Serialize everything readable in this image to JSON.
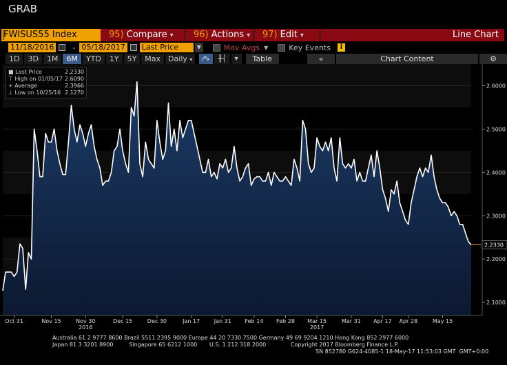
{
  "window_title": "GRAB",
  "toolbar": {
    "ticker": "FWISUS55 Index",
    "compare_num": "95)",
    "compare_label": "Compare",
    "actions_num": "96)",
    "actions_label": "Actions",
    "edit_num": "97)",
    "edit_label": "Edit",
    "chart_type": "Line Chart",
    "start_date": "11/18/2016",
    "end_date": "05/18/2017",
    "field": "Last Price",
    "mov_avgs": "Mov Avgs",
    "key_events": "Key Events",
    "periods": [
      "1D",
      "3D",
      "1M",
      "6M",
      "YTD",
      "1Y",
      "5Y",
      "Max"
    ],
    "active_period": "6M",
    "frequency": "Daily",
    "table_label": "Table",
    "chart_content": "Chart Content"
  },
  "stats": {
    "last_label": "Last Price",
    "last_value": "2.2330",
    "high_label": "High on 01/05/17",
    "high_value": "2.6090",
    "avg_label": "Average",
    "avg_value": "2.3966",
    "low_label": "Low on 10/25/16",
    "low_value": "2.1270"
  },
  "colors": {
    "line": "#ffffff",
    "fill_top": "#1c3c68",
    "fill_bottom": "#0c1830",
    "last_tag": "#f0a000"
  },
  "chart_data": {
    "type": "area",
    "title": "",
    "ylim": [
      2.07,
      2.65
    ],
    "y_ticks": [
      "2.1000",
      "2.2000",
      "2.3000",
      "2.4000",
      "2.5000",
      "2.6000"
    ],
    "y_tick_values": [
      2.1,
      2.2,
      2.3,
      2.4,
      2.5,
      2.6
    ],
    "x_labels": [
      "Oct 31",
      "Nov 15",
      "Nov 30",
      "Dec 15",
      "Dec 30",
      "Jan 17",
      "Jan 31",
      "Feb 14",
      "Feb 28",
      "Mar 15",
      "Mar 31",
      "Apr 17",
      "Apr 28",
      "May 15"
    ],
    "x_label_idx": [
      4,
      17,
      29,
      42,
      54,
      66,
      77,
      88,
      99,
      110,
      122,
      133,
      142,
      154
    ],
    "year_labels": [
      {
        "text": "2016",
        "idx": 29
      },
      {
        "text": "2017",
        "idx": 110
      }
    ],
    "last_value_label": "2.2330",
    "series": [
      {
        "values": [
          2.127,
          2.17,
          2.17,
          2.17,
          2.16,
          2.17,
          2.235,
          2.225,
          2.13,
          2.215,
          2.2,
          2.5,
          2.45,
          2.39,
          2.39,
          2.49,
          2.47,
          2.47,
          2.5,
          2.45,
          2.42,
          2.395,
          2.395,
          2.47,
          2.555,
          2.5,
          2.47,
          2.51,
          2.49,
          2.46,
          2.49,
          2.51,
          2.46,
          2.43,
          2.41,
          2.37,
          2.38,
          2.38,
          2.4,
          2.45,
          2.46,
          2.5,
          2.45,
          2.42,
          2.4,
          2.55,
          2.53,
          2.609,
          2.42,
          2.39,
          2.47,
          2.43,
          2.42,
          2.41,
          2.52,
          2.47,
          2.43,
          2.45,
          2.56,
          2.46,
          2.5,
          2.45,
          2.52,
          2.48,
          2.5,
          2.52,
          2.52,
          2.49,
          2.46,
          2.43,
          2.4,
          2.4,
          2.43,
          2.39,
          2.4,
          2.385,
          2.42,
          2.41,
          2.43,
          2.4,
          2.41,
          2.46,
          2.41,
          2.38,
          2.39,
          2.41,
          2.42,
          2.37,
          2.385,
          2.39,
          2.39,
          2.38,
          2.38,
          2.4,
          2.37,
          2.4,
          2.39,
          2.38,
          2.38,
          2.39,
          2.38,
          2.37,
          2.43,
          2.41,
          2.38,
          2.52,
          2.5,
          2.42,
          2.4,
          2.41,
          2.48,
          2.46,
          2.45,
          2.47,
          2.45,
          2.48,
          2.41,
          2.38,
          2.48,
          2.42,
          2.41,
          2.42,
          2.41,
          2.43,
          2.38,
          2.4,
          2.38,
          2.38,
          2.41,
          2.44,
          2.39,
          2.45,
          2.41,
          2.36,
          2.34,
          2.31,
          2.36,
          2.35,
          2.38,
          2.33,
          2.31,
          2.29,
          2.28,
          2.33,
          2.36,
          2.39,
          2.41,
          2.39,
          2.41,
          2.4,
          2.44,
          2.39,
          2.36,
          2.34,
          2.33,
          2.33,
          2.32,
          2.3,
          2.31,
          2.3,
          2.28,
          2.28,
          2.26,
          2.24,
          2.233
        ]
      }
    ]
  },
  "footer": {
    "line1": "Australia 61 2 9777 8600 Brazil 5511 2395 9000 Europe 44 20 7330 7500 Germany 49 69 9204 1210 Hong Kong 852 2977 6000",
    "line2": "Japan 81 3 3201 8900         Singapore 65 6212 1000       U.S. 1 212 318 2000              Copyright 2017 Bloomberg Finance L.P.",
    "line3": "SN 852780 G624-4085-1 18-May-17 11:53:03 GMT  GMT+0:00"
  }
}
